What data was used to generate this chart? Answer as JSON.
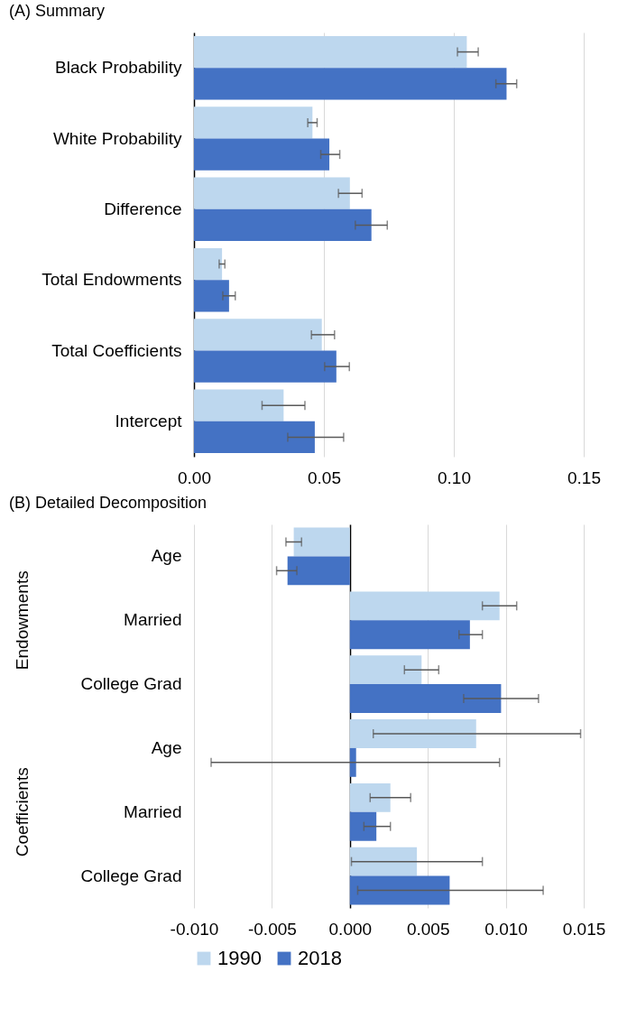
{
  "chart_data": [
    {
      "type": "bar",
      "title": "(A)   Summary",
      "orientation": "horizontal",
      "categories": [
        "Black Probability",
        "White Probability",
        "Difference",
        "Total Endowments",
        "Total Coefficients",
        "Intercept"
      ],
      "series": [
        {
          "color": "#bdd7ee",
          "values": [
            0.105,
            0.0456,
            0.06,
            0.0108,
            0.0492,
            0.0345
          ],
          "errors": [
            [
              0.1014,
              0.1094
            ],
            [
              0.0438,
              0.0474
            ],
            [
              0.0556,
              0.0647
            ],
            [
              0.0097,
              0.0119
            ],
            [
              0.0452,
              0.0541
            ],
            [
              0.0262,
              0.0427
            ]
          ]
        },
        {
          "color": "#4472c4",
          "values": [
            0.1203,
            0.0521,
            0.0683,
            0.0135,
            0.0548,
            0.0465
          ],
          "errors": [
            [
              0.1162,
              0.1242
            ],
            [
              0.0488,
              0.0561
            ],
            [
              0.0621,
              0.0744
            ],
            [
              0.0111,
              0.0159
            ],
            [
              0.0503,
              0.0598
            ],
            [
              0.0361,
              0.0576
            ]
          ]
        }
      ],
      "xlim": [
        0,
        0.15
      ],
      "xticks": [
        {
          "value": 0,
          "label": "0.00"
        },
        0.05,
        {
          "value": 0.1,
          "label": "0.10"
        },
        0.15
      ],
      "grid": "x"
    },
    {
      "type": "bar",
      "title": "(B)   Detailed Decomposition",
      "orientation": "horizontal",
      "categories": [
        "Age",
        "Married",
        "College Grad",
        "Age",
        "Married",
        "College Grad"
      ],
      "annotations": [
        "Endowments",
        "Coefficients"
      ],
      "series": [
        {
          "name": "1990",
          "color": "#bdd7ee",
          "values": [
            -0.0036,
            0.0096,
            0.0046,
            0.0081,
            0.0026,
            0.0043
          ],
          "errors": [
            [
              -0.0041,
              -0.0031
            ],
            [
              0.0085,
              0.0107
            ],
            [
              0.0035,
              0.0057
            ],
            [
              0.0015,
              0.0148
            ],
            [
              0.0013,
              0.0039
            ],
            [
              0.0001,
              0.0085
            ]
          ]
        },
        {
          "name": "2018",
          "color": "#4472c4",
          "values": [
            -0.004,
            0.0077,
            0.0097,
            0.0004,
            0.0017,
            0.0064
          ],
          "errors": [
            [
              -0.0047,
              -0.0034
            ],
            [
              0.007,
              0.0085
            ],
            [
              0.0073,
              0.0121
            ],
            [
              -0.0089,
              0.0096
            ],
            [
              0.0009,
              0.0026
            ],
            [
              0.0005,
              0.0124
            ]
          ]
        }
      ],
      "xlim": [
        -0.01,
        0.015
      ],
      "xticks": [
        {
          "value": -0.01,
          "label": "-0.010"
        },
        -0.005,
        {
          "value": 0,
          "label": "0.000"
        },
        0.005,
        {
          "value": 0.01,
          "label": "0.010"
        },
        0.015
      ],
      "grid": "x",
      "legend": "bottom"
    }
  ]
}
